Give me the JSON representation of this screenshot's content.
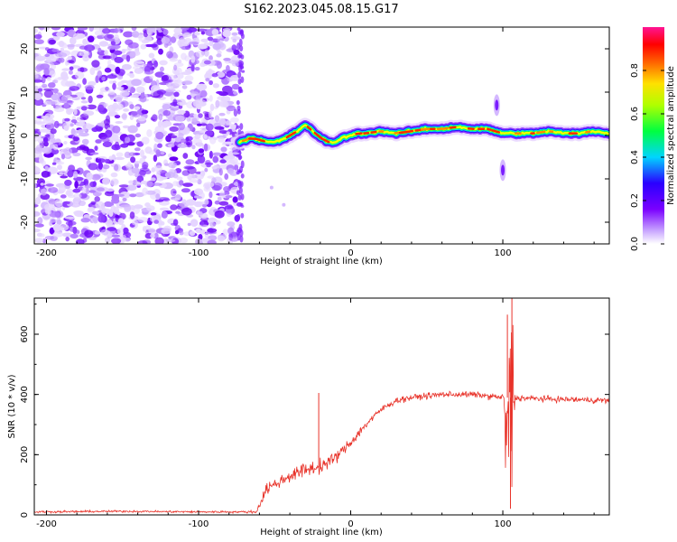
{
  "figure": {
    "title": "S162.2023.045.08.15.G17"
  },
  "chart_data": [
    {
      "type": "heatmap",
      "title": "S162.2023.045.08.15.G17",
      "xlabel": "Height of straight line (km)",
      "ylabel": "Frequency (Hz)",
      "xlim": [
        -208,
        170
      ],
      "ylim": [
        -25,
        25
      ],
      "xticks": [
        -200,
        -100,
        0,
        100
      ],
      "yticks": [
        -20,
        -10,
        0,
        10,
        20
      ],
      "colorbar": {
        "label": "Normalized spectral amplitude",
        "range": [
          0,
          1
        ],
        "ticks": [
          0.0,
          0.2,
          0.4,
          0.6,
          0.8
        ],
        "colormap": [
          "#ffffff",
          "#9b30ff",
          "#3a00ff",
          "#00e5ff",
          "#00ff00",
          "#ffff00",
          "#ff8c00",
          "#ff0000",
          "#ff1493"
        ]
      },
      "noise_region": {
        "x": [
          -208,
          -73
        ],
        "y": [
          -25,
          25
        ]
      },
      "ridge": {
        "x": [
          -73,
          -65,
          -60,
          -55,
          -50,
          -45,
          -40,
          -35,
          -30,
          -25,
          -20,
          -15,
          -10,
          -5,
          0,
          5,
          10,
          20,
          30,
          40,
          50,
          60,
          70,
          80,
          90,
          95,
          100,
          110,
          120,
          130,
          140,
          150,
          160,
          170
        ],
        "y": [
          -1.5,
          -0.5,
          -1,
          -1.5,
          -1.5,
          -1,
          0,
          1,
          2.5,
          1,
          -0.5,
          -1.5,
          -1.5,
          -0.5,
          0,
          0.5,
          0.5,
          1,
          0.5,
          1,
          1.5,
          1.5,
          2,
          1.5,
          1.5,
          1,
          0.5,
          0.5,
          0.5,
          1,
          0.5,
          0.5,
          1,
          0.5
        ]
      },
      "spurious_blobs": [
        {
          "x": 96,
          "y": 7
        },
        {
          "x": 100,
          "y": -8
        },
        {
          "x": -52,
          "y": -12
        },
        {
          "x": -44,
          "y": -16
        }
      ]
    },
    {
      "type": "line",
      "xlabel": "Height of straight line (km)",
      "ylabel": "SNR (10 * v/v)",
      "xlim": [
        -208,
        170
      ],
      "ylim": [
        0,
        720
      ],
      "xticks": [
        -200,
        -100,
        0,
        100
      ],
      "yticks": [
        0,
        200,
        400,
        600
      ],
      "color": "#e8332a",
      "series": [
        {
          "x": [
            -208,
            -150,
            -100,
            -70,
            -62,
            -55,
            -50,
            -40,
            -30,
            -20,
            -10,
            0,
            10,
            20,
            30,
            40,
            60,
            80,
            100,
            130,
            170
          ],
          "y": [
            10,
            12,
            10,
            10,
            10,
            90,
            100,
            130,
            150,
            160,
            190,
            240,
            300,
            350,
            380,
            390,
            400,
            400,
            390,
            385,
            380
          ],
          "noise_amplitude": [
            5,
            5,
            5,
            5,
            8,
            30,
            30,
            30,
            35,
            35,
            30,
            25,
            20,
            15,
            15,
            15,
            15,
            15,
            15,
            15,
            15
          ]
        }
      ],
      "spikes": [
        {
          "x": -21,
          "y": 405
        },
        {
          "x": 103,
          "y": 665
        },
        {
          "x": 106,
          "y": 720
        },
        {
          "x": 105,
          "y": 20
        }
      ]
    }
  ]
}
